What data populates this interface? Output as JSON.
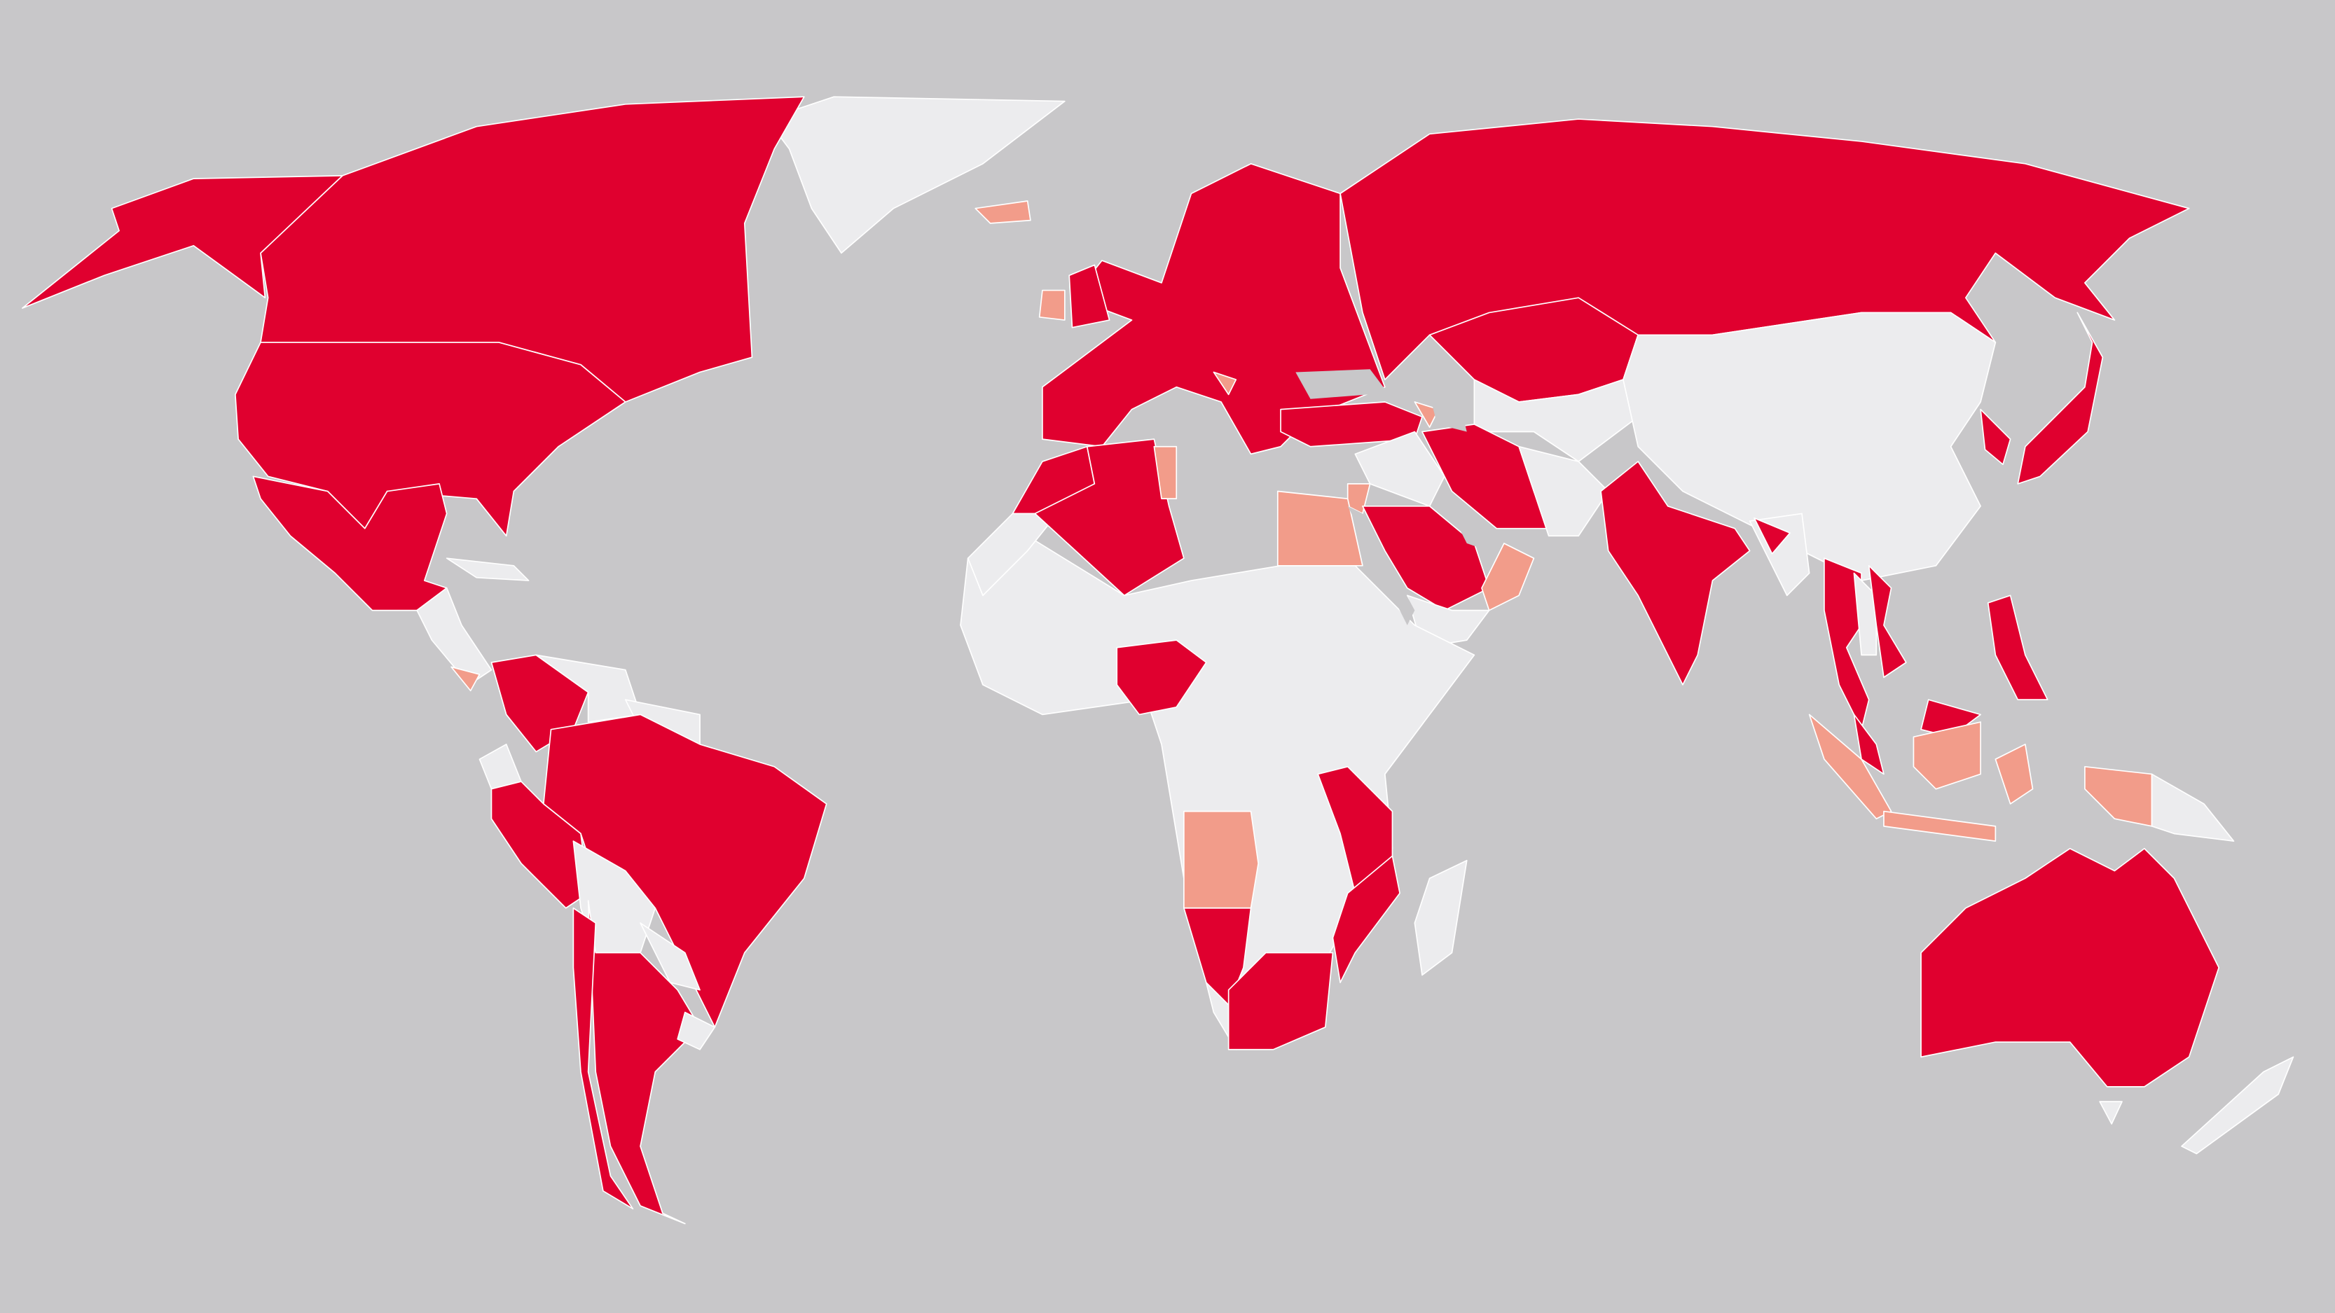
{
  "map": {
    "type": "choropleth-world-map",
    "colors": {
      "background": "#c8c7c9",
      "primary": "#e0002f",
      "secondary": "#f29c8a",
      "none": "#ececee",
      "border": "#ffffff"
    },
    "regions": [
      {
        "name": "greenland",
        "category": "none"
      },
      {
        "name": "iceland",
        "category": "secondary"
      },
      {
        "name": "canada",
        "category": "primary"
      },
      {
        "name": "alaska",
        "category": "primary"
      },
      {
        "name": "united-states",
        "category": "primary"
      },
      {
        "name": "mexico",
        "category": "primary"
      },
      {
        "name": "central-america",
        "category": "none"
      },
      {
        "name": "costa-rica",
        "category": "secondary"
      },
      {
        "name": "cuba",
        "category": "none"
      },
      {
        "name": "colombia",
        "category": "primary"
      },
      {
        "name": "venezuela",
        "category": "none"
      },
      {
        "name": "guianas",
        "category": "none"
      },
      {
        "name": "brazil",
        "category": "primary"
      },
      {
        "name": "ecuador",
        "category": "none"
      },
      {
        "name": "peru",
        "category": "primary"
      },
      {
        "name": "bolivia",
        "category": "none"
      },
      {
        "name": "paraguay",
        "category": "none"
      },
      {
        "name": "argentina",
        "category": "primary"
      },
      {
        "name": "chile",
        "category": "primary"
      },
      {
        "name": "uruguay",
        "category": "none"
      },
      {
        "name": "europe",
        "category": "primary"
      },
      {
        "name": "united-kingdom",
        "category": "primary"
      },
      {
        "name": "ireland",
        "category": "secondary"
      },
      {
        "name": "balkan-country",
        "category": "secondary"
      },
      {
        "name": "russia",
        "category": "primary"
      },
      {
        "name": "kazakhstan",
        "category": "primary"
      },
      {
        "name": "central-asia",
        "category": "none"
      },
      {
        "name": "china",
        "category": "none"
      },
      {
        "name": "south-korea",
        "category": "primary"
      },
      {
        "name": "japan",
        "category": "primary"
      },
      {
        "name": "turkey",
        "category": "primary"
      },
      {
        "name": "caucasus-country",
        "category": "secondary"
      },
      {
        "name": "syria-iraq",
        "category": "none"
      },
      {
        "name": "jordan",
        "category": "secondary"
      },
      {
        "name": "saudi-arabia",
        "category": "primary"
      },
      {
        "name": "iran",
        "category": "primary"
      },
      {
        "name": "oman",
        "category": "secondary"
      },
      {
        "name": "yemen",
        "category": "none"
      },
      {
        "name": "afghanistan-pakistan",
        "category": "none"
      },
      {
        "name": "india",
        "category": "primary"
      },
      {
        "name": "myanmar",
        "category": "none"
      },
      {
        "name": "bangladesh",
        "category": "primary"
      },
      {
        "name": "thailand",
        "category": "primary"
      },
      {
        "name": "laos-cambodia",
        "category": "none"
      },
      {
        "name": "vietnam",
        "category": "primary"
      },
      {
        "name": "malaysia-peninsula",
        "category": "primary"
      },
      {
        "name": "malaysia-borneo",
        "category": "primary"
      },
      {
        "name": "kalimantan",
        "category": "secondary"
      },
      {
        "name": "sumatra",
        "category": "secondary"
      },
      {
        "name": "java",
        "category": "secondary"
      },
      {
        "name": "sulawesi",
        "category": "secondary"
      },
      {
        "name": "papua",
        "category": "secondary"
      },
      {
        "name": "papua-new-guinea",
        "category": "none"
      },
      {
        "name": "philippines",
        "category": "primary"
      },
      {
        "name": "australia",
        "category": "primary"
      },
      {
        "name": "tasmania",
        "category": "none"
      },
      {
        "name": "new-zealand",
        "category": "none"
      },
      {
        "name": "africa",
        "category": "none"
      },
      {
        "name": "morocco",
        "category": "primary"
      },
      {
        "name": "western-sahara",
        "category": "none"
      },
      {
        "name": "algeria",
        "category": "primary"
      },
      {
        "name": "tunisia",
        "category": "secondary"
      },
      {
        "name": "egypt",
        "category": "secondary"
      },
      {
        "name": "nigeria",
        "category": "primary"
      },
      {
        "name": "angola",
        "category": "secondary"
      },
      {
        "name": "namibia",
        "category": "primary"
      },
      {
        "name": "south-africa",
        "category": "primary"
      },
      {
        "name": "tanzania-malawi",
        "category": "primary"
      },
      {
        "name": "mozambique",
        "category": "primary"
      },
      {
        "name": "madagascar",
        "category": "none"
      }
    ]
  }
}
